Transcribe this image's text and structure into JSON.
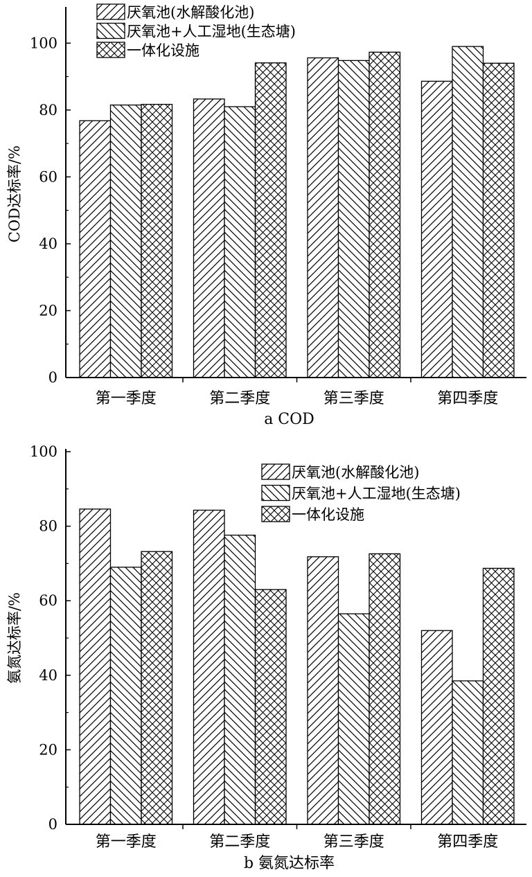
{
  "chart_data": [
    {
      "type": "bar",
      "caption": "a COD",
      "xlabel": "",
      "ylabel": "COD达标率/%",
      "ylim": [
        0,
        110
      ],
      "yticks": [
        0,
        20,
        40,
        60,
        80,
        100
      ],
      "categories": [
        "第一季度",
        "第二季度",
        "第三季度",
        "第四季度"
      ],
      "legend_position": "top-left",
      "series": [
        {
          "name": "厌氧池(水解酸化池)",
          "pattern": "diag-right",
          "values": [
            76.8,
            83.3,
            95.6,
            88.6
          ]
        },
        {
          "name": "厌氧池+人工湿地(生态塘)",
          "pattern": "diag-left",
          "values": [
            81.5,
            81.0,
            94.8,
            99.0
          ]
        },
        {
          "name": "一体化设施",
          "pattern": "crosshatch",
          "values": [
            81.7,
            94.1,
            97.3,
            94.0
          ]
        }
      ]
    },
    {
      "type": "bar",
      "caption": "b 氨氮达标率",
      "xlabel": "",
      "ylabel": "氨氮达标率/%",
      "ylim": [
        0,
        100
      ],
      "yticks": [
        0,
        20,
        40,
        60,
        80,
        100
      ],
      "categories": [
        "第一季度",
        "第二季度",
        "第三季度",
        "第四季度"
      ],
      "legend_position": "top-right",
      "series": [
        {
          "name": "厌氧池(水解酸化池)",
          "pattern": "diag-right",
          "values": [
            84.6,
            84.3,
            71.8,
            52.0
          ]
        },
        {
          "name": "厌氧池+人工湿地(生态塘)",
          "pattern": "diag-left",
          "values": [
            69.0,
            77.6,
            56.5,
            38.5
          ]
        },
        {
          "name": "一体化设施",
          "pattern": "crosshatch",
          "values": [
            73.2,
            63.0,
            72.6,
            68.7
          ]
        }
      ]
    }
  ]
}
